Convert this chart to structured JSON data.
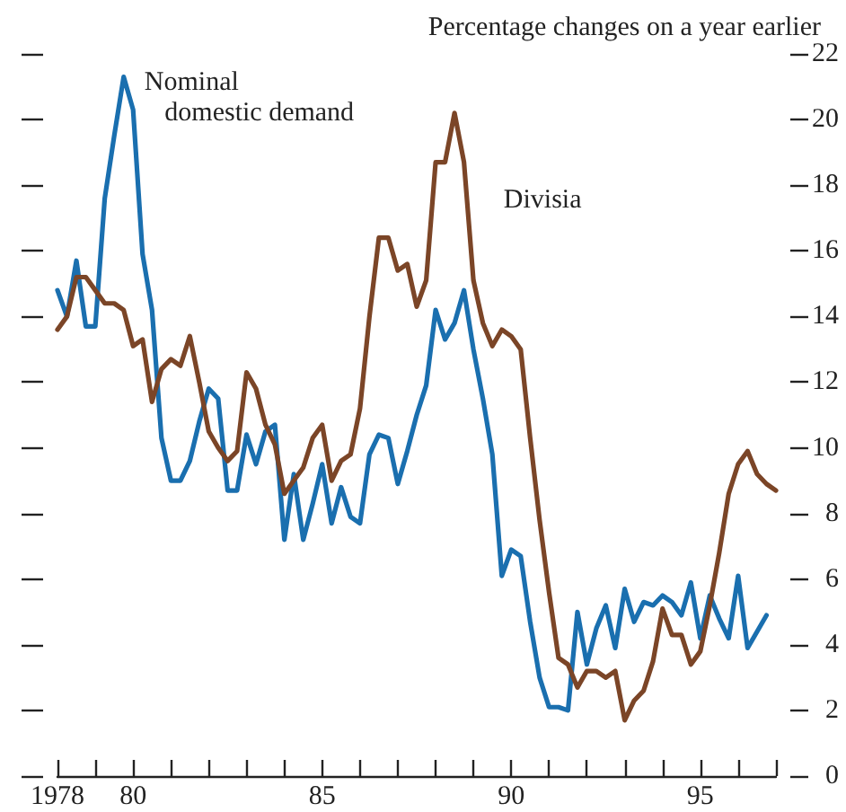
{
  "chart_data": {
    "type": "line",
    "ylabel": "Percentage changes on a year earlier",
    "x": [
      1978,
      1978.25,
      1978.5,
      1978.75,
      1979,
      1979.25,
      1979.5,
      1979.75,
      1980,
      1980.25,
      1980.5,
      1980.75,
      1981,
      1981.25,
      1981.5,
      1981.75,
      1982,
      1982.25,
      1982.5,
      1982.75,
      1983,
      1983.25,
      1983.5,
      1983.75,
      1984,
      1984.25,
      1984.5,
      1984.75,
      1985,
      1985.25,
      1985.5,
      1985.75,
      1986,
      1986.25,
      1986.5,
      1986.75,
      1987,
      1987.25,
      1987.5,
      1987.75,
      1988,
      1988.25,
      1988.5,
      1988.75,
      1989,
      1989.25,
      1989.5,
      1989.75,
      1990,
      1990.25,
      1990.5,
      1990.75,
      1991,
      1991.25,
      1991.5,
      1991.75,
      1992,
      1992.25,
      1992.5,
      1992.75,
      1993,
      1993.25,
      1993.5,
      1993.75,
      1994,
      1994.25,
      1994.5,
      1994.75,
      1995,
      1995.25,
      1995.5,
      1995.75,
      1996,
      1996.25,
      1996.5,
      1996.75,
      1997
    ],
    "series": [
      {
        "name": "Nominal domestic demand",
        "color": "#1a6faf",
        "values": [
          14.8,
          14.0,
          15.7,
          13.7,
          13.7,
          17.6,
          19.5,
          21.3,
          20.3,
          15.9,
          14.2,
          10.3,
          9.0,
          9.0,
          9.6,
          10.8,
          11.8,
          11.5,
          8.7,
          8.7,
          10.4,
          9.5,
          10.5,
          10.7,
          7.2,
          9.2,
          7.2,
          8.3,
          9.5,
          7.7,
          8.8,
          7.9,
          7.7,
          9.8,
          10.4,
          10.3,
          8.9,
          9.9,
          11.0,
          11.9,
          14.2,
          13.3,
          13.8,
          14.8,
          13.0,
          11.5,
          9.8,
          6.1,
          6.9,
          6.7,
          4.7,
          3.0,
          2.1,
          2.1,
          2.0,
          5.0,
          3.4,
          4.5,
          5.2,
          3.9,
          5.7,
          4.7,
          5.3,
          5.2,
          5.5,
          5.3,
          4.9,
          5.9,
          4.2,
          5.5,
          4.8,
          4.2,
          6.1,
          3.9,
          4.4,
          4.9,
          null
        ]
      },
      {
        "name": "Divisia",
        "color": "#7b4527",
        "values": [
          13.6,
          14.0,
          15.2,
          15.2,
          14.8,
          14.4,
          14.4,
          14.2,
          13.1,
          13.3,
          11.4,
          12.4,
          12.7,
          12.5,
          13.4,
          12.0,
          10.5,
          10.0,
          9.6,
          9.9,
          12.3,
          11.8,
          10.7,
          10.1,
          8.6,
          9.0,
          9.4,
          10.3,
          10.7,
          9.0,
          9.6,
          9.8,
          11.2,
          14.0,
          16.4,
          16.4,
          15.4,
          15.6,
          14.3,
          15.1,
          18.7,
          18.7,
          20.2,
          18.7,
          15.1,
          13.8,
          13.1,
          13.6,
          13.4,
          13.0,
          10.3,
          7.8,
          5.6,
          3.6,
          3.4,
          2.7,
          3.2,
          3.2,
          3.0,
          3.2,
          1.7,
          2.3,
          2.6,
          3.5,
          5.1,
          4.3,
          4.3,
          3.4,
          3.8,
          5.2,
          6.8,
          8.6,
          9.5,
          9.9,
          9.2,
          8.9,
          8.7
        ]
      }
    ],
    "xlim": [
      1978,
      1997
    ],
    "xticks": [
      {
        "value": 1978,
        "label": "1978"
      },
      {
        "value": 1979,
        "label": null
      },
      {
        "value": 1980,
        "label": "80"
      },
      {
        "value": 1981,
        "label": null
      },
      {
        "value": 1982,
        "label": null
      },
      {
        "value": 1983,
        "label": null
      },
      {
        "value": 1984,
        "label": null
      },
      {
        "value": 1985,
        "label": "85"
      },
      {
        "value": 1986,
        "label": null
      },
      {
        "value": 1987,
        "label": null
      },
      {
        "value": 1988,
        "label": null
      },
      {
        "value": 1989,
        "label": null
      },
      {
        "value": 1990,
        "label": "90"
      },
      {
        "value": 1991,
        "label": null
      },
      {
        "value": 1992,
        "label": null
      },
      {
        "value": 1993,
        "label": null
      },
      {
        "value": 1994,
        "label": null
      },
      {
        "value": 1995,
        "label": "95"
      },
      {
        "value": 1996,
        "label": null
      },
      {
        "value": 1997,
        "label": null
      }
    ],
    "ylim": [
      0,
      22
    ],
    "yticks": [
      0,
      2,
      4,
      6,
      8,
      10,
      12,
      14,
      16,
      18,
      20,
      22
    ],
    "legend": false,
    "grid": false,
    "marker": "none",
    "line_style": "solid"
  }
}
